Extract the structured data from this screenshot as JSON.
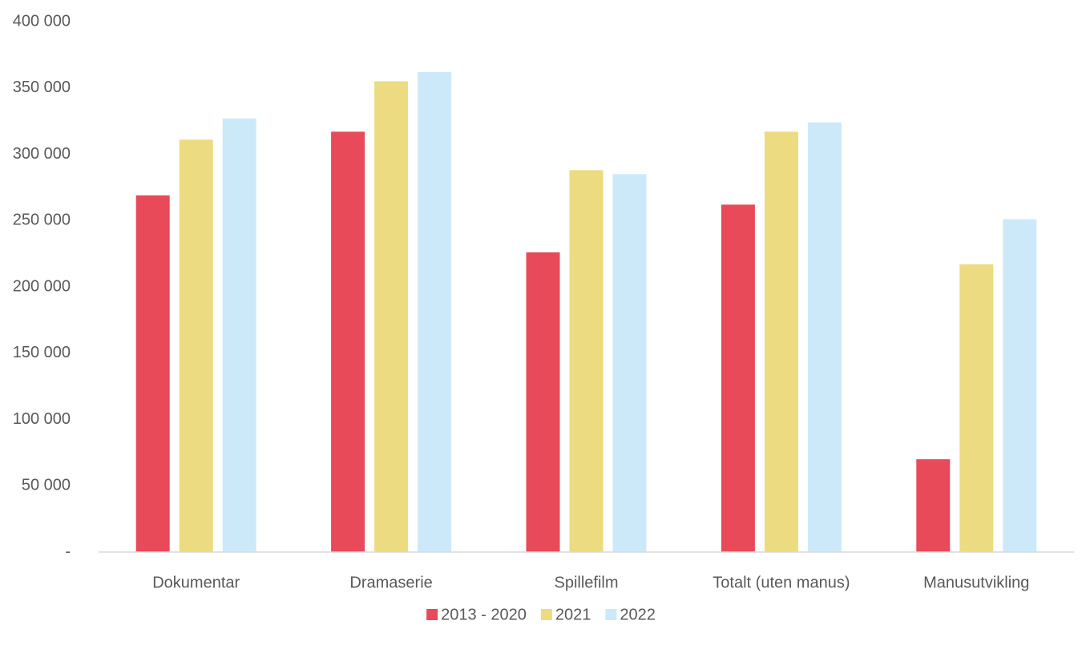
{
  "chart_data": {
    "type": "bar",
    "categories": [
      "Dokumentar",
      "Dramaserie",
      "Spillefilm",
      "Totalt (uten manus)",
      "Manusutvikling"
    ],
    "series": [
      {
        "name": "2013 - 2020",
        "color": "#e84a5a",
        "values": [
          269000,
          317000,
          226000,
          262000,
          70000
        ]
      },
      {
        "name": "2021",
        "color": "#ecdb80",
        "values": [
          311000,
          355000,
          288000,
          317000,
          217000
        ]
      },
      {
        "name": "2022",
        "color": "#cce9f9",
        "values": [
          327000,
          362000,
          285000,
          324000,
          251000
        ]
      }
    ],
    "ylim": [
      0,
      400000
    ],
    "yticks": [
      {
        "value": 0,
        "label": "-"
      },
      {
        "value": 50000,
        "label": "50 000"
      },
      {
        "value": 100000,
        "label": "100 000"
      },
      {
        "value": 150000,
        "label": "150 000"
      },
      {
        "value": 200000,
        "label": "200 000"
      },
      {
        "value": 250000,
        "label": "250 000"
      },
      {
        "value": 300000,
        "label": "300 000"
      },
      {
        "value": 350000,
        "label": "350 000"
      },
      {
        "value": 400000,
        "label": "400 000"
      }
    ],
    "grid": false,
    "legend": "bottom"
  }
}
